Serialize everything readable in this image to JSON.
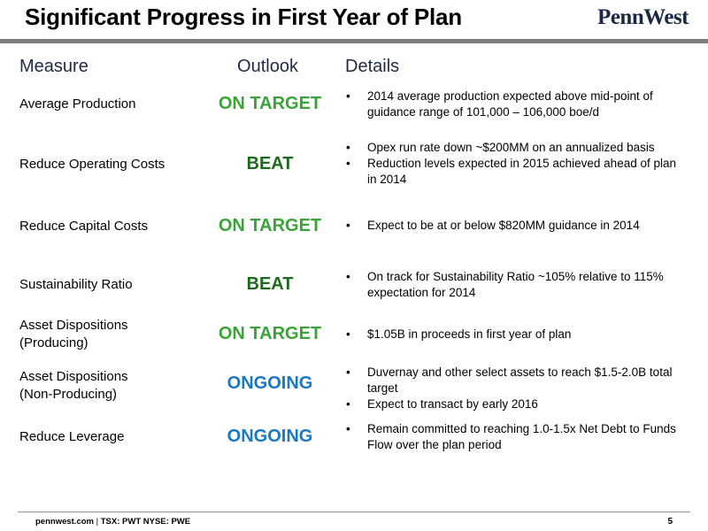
{
  "title": "Significant Progress in First Year of Plan",
  "logo_text": "PennWest",
  "headers": {
    "measure": "Measure",
    "outlook": "Outlook",
    "details": "Details"
  },
  "rows": [
    {
      "measure_lines": [
        "Average Production"
      ],
      "outlook": "ON TARGET",
      "outlook_color": "#3aa537",
      "details": [
        "2014 average production expected above mid-point of guidance range of 101,000 – 106,000 boe/d"
      ]
    },
    {
      "measure_lines": [
        "Reduce Operating Costs"
      ],
      "outlook": "BEAT",
      "outlook_color": "#1d6a1f",
      "details": [
        "Opex run rate down ~$200MM on an annualized basis",
        "Reduction levels expected in 2015 achieved ahead of plan in 2014"
      ]
    },
    {
      "measure_lines": [
        "Reduce Capital Costs"
      ],
      "outlook": "ON TARGET",
      "outlook_color": "#3aa537",
      "details": [
        "Expect to be at or below $820MM guidance in 2014"
      ]
    },
    {
      "measure_lines": [
        "Sustainability Ratio"
      ],
      "outlook": "BEAT",
      "outlook_color": "#1d6a1f",
      "details": [
        "On track for Sustainability Ratio ~105% relative to 115% expectation for 2014"
      ]
    },
    {
      "measure_lines": [
        "Asset Dispositions",
        "(Producing)"
      ],
      "outlook": "ON TARGET",
      "outlook_color": "#3aa537",
      "details": [
        "$1.05B in proceeds in first year of plan"
      ]
    },
    {
      "measure_lines": [
        "Asset Dispositions",
        "(Non-Producing)"
      ],
      "outlook": "ONGOING",
      "outlook_color": "#1b78c2",
      "details": [
        "Duvernay and other select assets to reach $1.5-2.0B total target",
        "Expect to transact by early 2016"
      ]
    },
    {
      "measure_lines": [
        "Reduce Leverage"
      ],
      "outlook": "ONGOING",
      "outlook_color": "#1b78c2",
      "details": [
        "Remain committed to reaching 1.0-1.5x Net Debt to Funds Flow over the plan period"
      ]
    }
  ],
  "footer": {
    "site": "pennwest.com",
    "separator": " | ",
    "tickers": "TSX: PWT  NYSE: PWE"
  },
  "page_number": "5"
}
